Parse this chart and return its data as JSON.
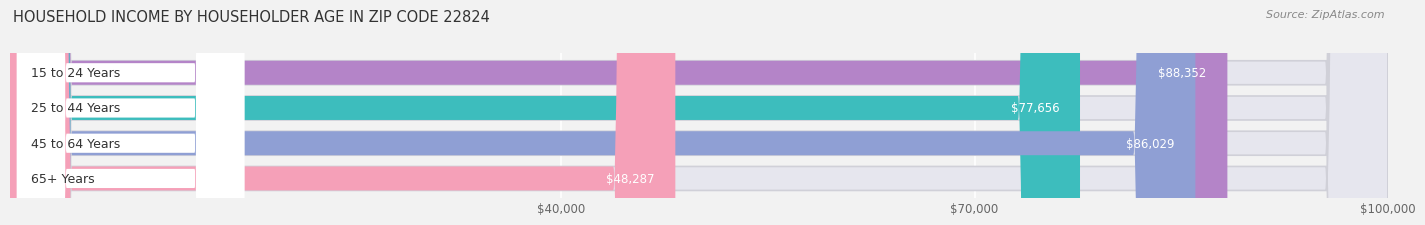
{
  "title": "HOUSEHOLD INCOME BY HOUSEHOLDER AGE IN ZIP CODE 22824",
  "source": "Source: ZipAtlas.com",
  "categories": [
    "15 to 24 Years",
    "25 to 44 Years",
    "45 to 64 Years",
    "65+ Years"
  ],
  "values": [
    88352,
    77656,
    86029,
    48287
  ],
  "bar_colors": [
    "#b484c8",
    "#3dbdbd",
    "#8f9fd4",
    "#f5a0b8"
  ],
  "bar_labels": [
    "$88,352",
    "$77,656",
    "$86,029",
    "$48,287"
  ],
  "xlim_max": 100000,
  "xticks": [
    40000,
    70000,
    100000
  ],
  "xticklabels": [
    "$40,000",
    "$70,000",
    "$100,000"
  ],
  "background_color": "#f2f2f2",
  "bar_bg_color": "#e6e6ee",
  "title_fontsize": 10.5,
  "source_fontsize": 8,
  "bar_label_fontsize": 8.5,
  "cat_label_fontsize": 9,
  "tick_fontsize": 8.5
}
